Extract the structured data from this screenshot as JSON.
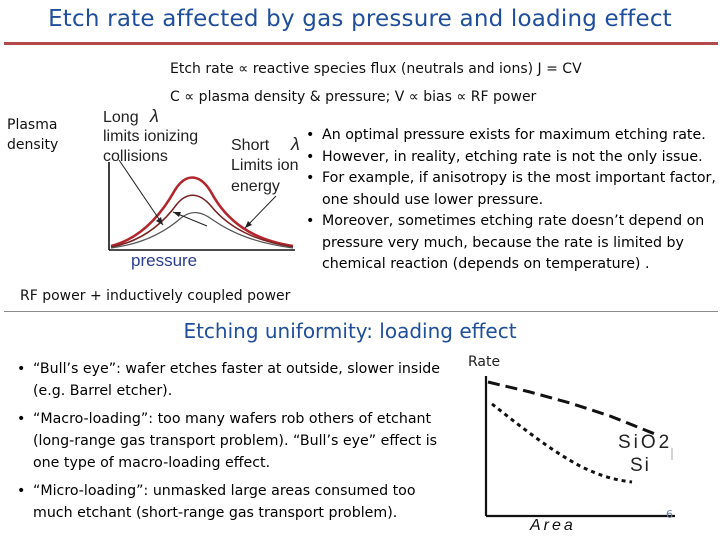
{
  "title": "Etch rate affected by gas pressure and loading effect",
  "equations": {
    "line1": "Etch rate ∝ reactive species flux (neutrals and ions) J = CV",
    "line2": "C ∝ plasma density & pressure; V ∝ bias ∝ RF power"
  },
  "side_label": "Plasma\ndensity",
  "bottom_label": "RF power + inductively coupled power",
  "figure1": {
    "long_label_1": "Long",
    "long_label_2": "limits ionizing",
    "long_label_3": "collisions",
    "lambda": "λ",
    "short_label_1": "Short",
    "short_label_2": "Limits ion",
    "short_label_3": "energy",
    "x_axis": "pressure"
  },
  "bullets_top": [
    "An optimal pressure exists for maximum etching rate.",
    "However, in reality, etching rate is not the only issue.",
    "For example, if anisotropy is the most important factor, one should use lower pressure.",
    "Moreover, sometimes etching rate doesn’t depend on pressure very much, because the rate is limited by chemical reaction (depends on temperature) ."
  ],
  "section2_title": "Etching uniformity: loading effect",
  "bullets_bottom": [
    "“Bull’s eye”: wafer etches faster at outside, slower inside (e.g. Barrel etcher).",
    "“Macro-loading”: too many wafers rob others of etchant (long-range gas transport problem). “Bull’s eye” effect is one type of macro-loading effect.",
    "“Micro-loading”: unmasked large areas consumed too much etchant (short-range gas transport problem)."
  ],
  "figure2": {
    "y_label": "Rate",
    "x_label": "Area",
    "curve_1": "SiO2",
    "curve_2": "Si"
  },
  "page_number": "6"
}
